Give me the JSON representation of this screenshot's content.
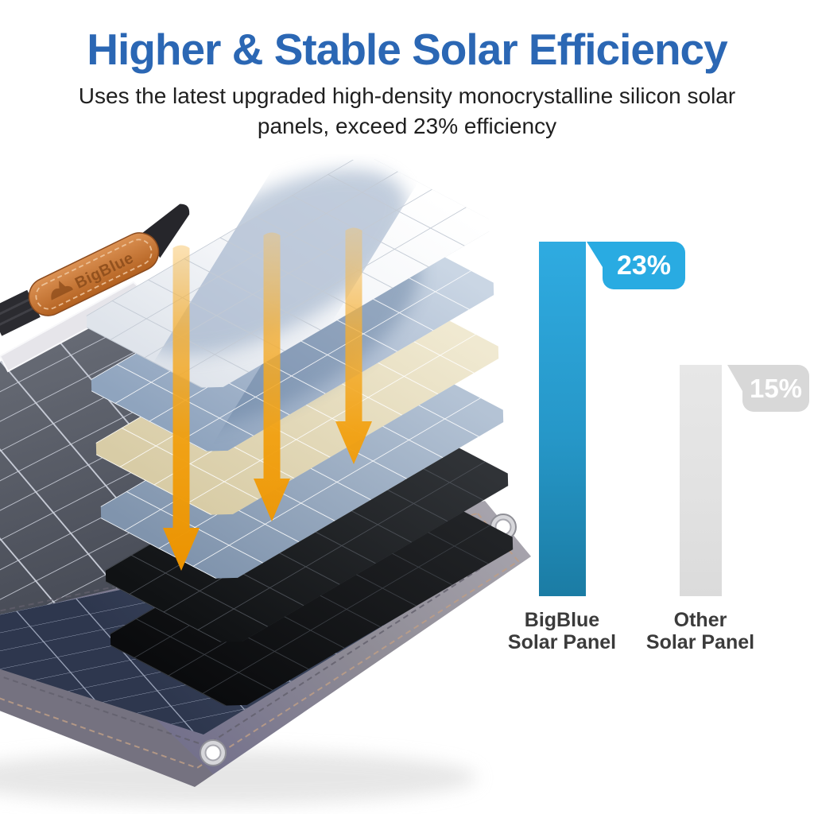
{
  "header": {
    "title": "Higher & Stable Solar Efficiency",
    "subtitle_line1": "Uses the latest upgraded high-density monocrystalline silicon solar",
    "subtitle_line2": "panels, exceed 23% efficiency",
    "title_color": "#2B67B4"
  },
  "chart_data": {
    "type": "bar",
    "categories": [
      "BigBlue Solar Panel",
      "Other Solar Panel"
    ],
    "values": [
      23,
      15
    ],
    "value_labels": [
      "23%",
      "15%"
    ],
    "unit": "%",
    "ylim": [
      0,
      23
    ],
    "grid": false,
    "legend": false,
    "bars": [
      {
        "label_line1": "BigBlue",
        "label_line2": "Solar Panel",
        "value": 23,
        "value_label": "23%",
        "bar_color_top": "#2FABE1",
        "bar_color_mid": "#2697C8",
        "bar_color_bottom": "#1B7CA4",
        "bubble_color": "#29ABE2"
      },
      {
        "label_line1": "Other",
        "label_line2": "Solar Panel",
        "value": 15,
        "value_label": "15%",
        "bar_color_top": "#E7E7E7",
        "bar_color_mid": "#E2E2E2",
        "bar_color_bottom": "#DBDBDB",
        "bubble_color": "#D8D8D8"
      }
    ]
  },
  "illustration": {
    "strap_brand": "BigBlue",
    "arrow_orange": "#F2A00F",
    "strap_leather_color": "#C0691F",
    "fabric_gray": "#8E8B95",
    "cell_blue": "#3E4A61",
    "layer_names": [
      "glass-layer",
      "cell-layer-blue",
      "backsheet-cream",
      "cell-layer-steel",
      "black-layer",
      "black-base-layer"
    ]
  }
}
